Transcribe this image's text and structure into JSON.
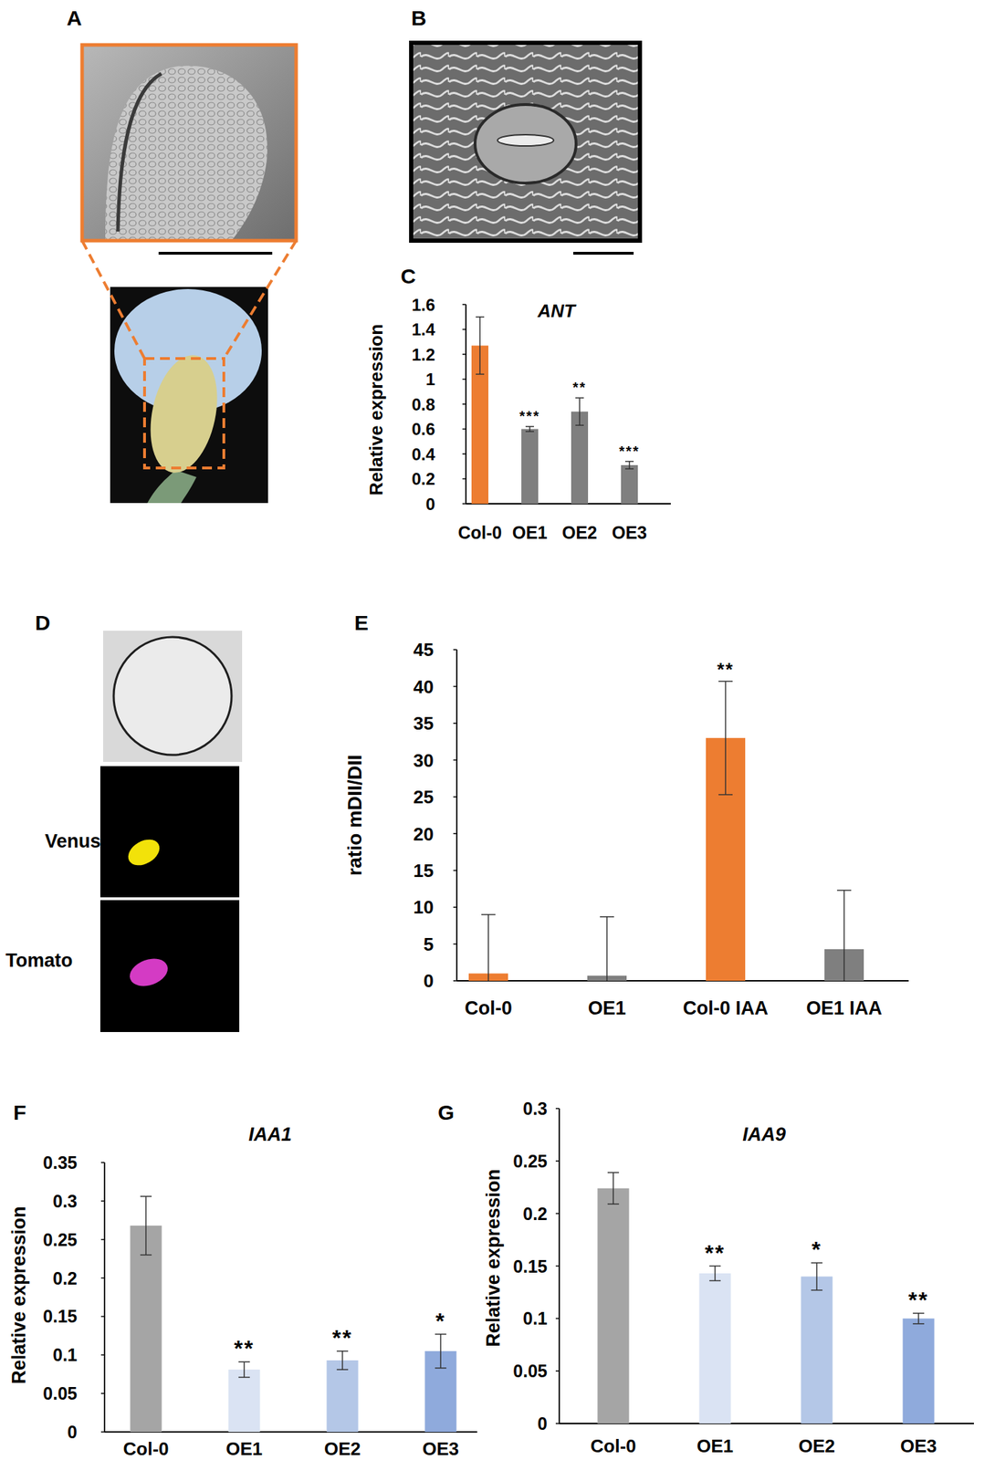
{
  "panels": [
    {
      "label": "A"
    },
    {
      "label": "B"
    },
    {
      "label": "C"
    },
    {
      "label": "D",
      "channels": [
        "Venus",
        "Tomato"
      ]
    },
    {
      "label": "E"
    },
    {
      "label": "F"
    },
    {
      "label": "G"
    }
  ],
  "chart_data": [
    {
      "type": "bar",
      "title": "ANT",
      "y_label": "Relative expression",
      "categories": [
        "Col-0",
        "OE1",
        "OE2",
        "OE3"
      ],
      "values": [
        1.27,
        0.6,
        0.74,
        0.31
      ],
      "errors": [
        0.23,
        0.02,
        0.11,
        0.03
      ],
      "annotations": [
        null,
        "***",
        "**",
        "***"
      ],
      "colors": [
        "#ed7d31",
        "#7f7f7f",
        "#7f7f7f",
        "#7f7f7f"
      ],
      "ylim": [
        0,
        1.6
      ],
      "yticks": [
        0,
        0.2,
        0.4,
        0.6,
        0.8,
        1,
        1.2,
        1.4,
        1.6
      ],
      "grid": false
    },
    {
      "type": "bar",
      "y_label": "ratio mDII/DII",
      "categories": [
        "Col-0",
        "OE1",
        "Col-0 IAA",
        "OE1 IAA"
      ],
      "values": [
        1,
        0.7,
        33,
        4.3
      ],
      "errors": [
        8,
        8,
        7.7,
        8
      ],
      "annotations": [
        null,
        null,
        "**",
        null
      ],
      "colors": [
        "#ed7d31",
        "#7f7f7f",
        "#ed7d31",
        "#7f7f7f"
      ],
      "ylim": [
        0,
        45
      ],
      "yticks": [
        0,
        5,
        10,
        15,
        20,
        25,
        30,
        35,
        40,
        45
      ],
      "grid": false
    },
    {
      "type": "bar",
      "title": "IAA1",
      "y_label": "Relative expression",
      "categories": [
        "Col-0",
        "OE1",
        "OE2",
        "OE3"
      ],
      "values": [
        0.268,
        0.081,
        0.093,
        0.105
      ],
      "errors": [
        0.038,
        0.01,
        0.012,
        0.022
      ],
      "annotations": [
        null,
        "**",
        "**",
        "*"
      ],
      "colors": [
        "#a5a5a5",
        "#dae3f3",
        "#b4c7e7",
        "#8faadc"
      ],
      "ylim": [
        0,
        0.35
      ],
      "yticks": [
        0,
        0.05,
        0.1,
        0.15,
        0.2,
        0.25,
        0.3,
        0.35
      ],
      "grid": false
    },
    {
      "type": "bar",
      "title": "IAA9",
      "y_label": "Relative expression",
      "categories": [
        "Col-0",
        "OE1",
        "OE2",
        "OE3"
      ],
      "values": [
        0.224,
        0.143,
        0.14,
        0.1
      ],
      "errors": [
        0.015,
        0.007,
        0.013,
        0.005
      ],
      "annotations": [
        null,
        "**",
        "*",
        "**"
      ],
      "colors": [
        "#a5a5a5",
        "#dae3f3",
        "#b4c7e7",
        "#8faadc"
      ],
      "ylim": [
        0,
        0.3
      ],
      "yticks": [
        0,
        0.05,
        0.1,
        0.15,
        0.2,
        0.25,
        0.3
      ],
      "grid": false
    }
  ]
}
